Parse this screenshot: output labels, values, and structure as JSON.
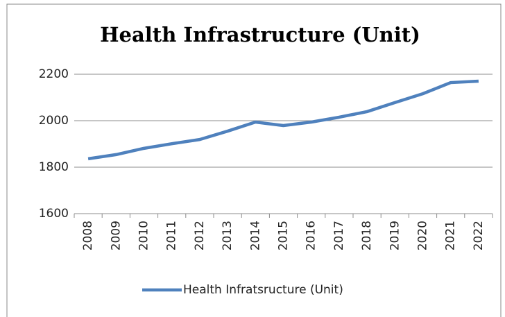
{
  "chart_data": {
    "type": "line",
    "title": "Health Infrastructure (Unit)",
    "categories": [
      "2008",
      "2009",
      "2010",
      "2011",
      "2012",
      "2013",
      "2014",
      "2015",
      "2016",
      "2017",
      "2018",
      "2019",
      "2020",
      "2021",
      "2022"
    ],
    "series": [
      {
        "name": "Health Infratsructure (Unit)",
        "color": "#4f81bd",
        "values": [
          1836,
          1854,
          1881,
          1901,
          1919,
          1955,
          1994,
          1979,
          1994,
          2015,
          2039,
          2078,
          2116,
          2164,
          2170
        ]
      }
    ],
    "ylim": [
      1600,
      2200
    ],
    "yticks": [
      1600,
      1800,
      2000,
      2200
    ],
    "grid": true,
    "legend": "bottom"
  }
}
